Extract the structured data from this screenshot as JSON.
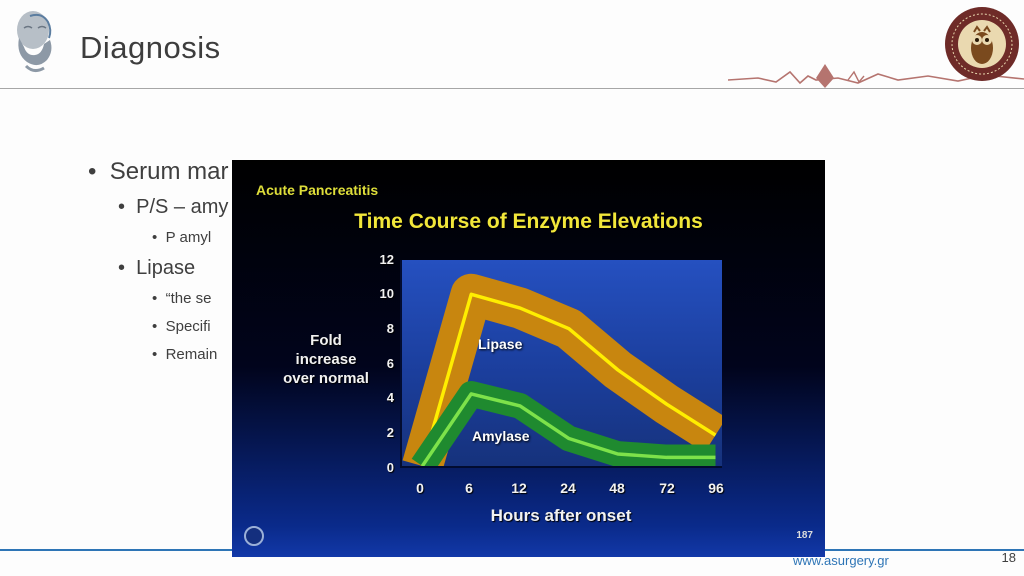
{
  "slide": {
    "title": "Diagnosis",
    "bullets": [
      {
        "level": 1,
        "text": "Serum mar"
      },
      {
        "level": 2,
        "text": "P/S – amy"
      },
      {
        "level": 3,
        "text": "P amyl"
      },
      {
        "level": 2,
        "text": "Lipase"
      },
      {
        "level": 3,
        "text": "“the se"
      },
      {
        "level": 3,
        "text": "Specifi"
      },
      {
        "level": 3,
        "text": "Remain"
      }
    ],
    "footer": {
      "link": "www.asurgery.gr",
      "page_number": "18"
    },
    "icons": {
      "header_left": "university-line-art-logo",
      "header_right": "university-owl-seal",
      "divider_decoration": "red-heartbeat-zigzag"
    },
    "accent_colors": {
      "footer_blue": "#2e75b6",
      "divider_gray": "#a6a6a6",
      "zigzag_red": "#b5746f",
      "title_gray": "#3d3d3d"
    }
  },
  "chart_data": {
    "type": "area",
    "subtitle": "Acute Pancreatitis",
    "title": "Time Course of Enzyme Elevations",
    "xlabel": "Hours after onset",
    "ylabel": "Fold increase over normal",
    "x_ticks": [
      0,
      6,
      12,
      24,
      48,
      72,
      96
    ],
    "y_ticks": [
      0,
      2,
      4,
      6,
      8,
      10,
      12
    ],
    "ylim": [
      0,
      12
    ],
    "x_spacing": "categorical",
    "legend_position": "inline-labels",
    "grid": false,
    "background_color": "#1b3e9c",
    "series": [
      {
        "name": "Lipase",
        "band_color": "#c8860f",
        "line_color": "#ffee00",
        "values": [
          0,
          10,
          9.2,
          8,
          5.6,
          3.6,
          1.8
        ],
        "band_thickness": 2.4
      },
      {
        "name": "Amylase",
        "band_color": "#1f8a2f",
        "line_color": "#7de24a",
        "values": [
          0,
          4.2,
          3.5,
          1.6,
          0.7,
          0.5,
          0.5
        ],
        "band_thickness": 1.5
      }
    ],
    "figure_number": "187"
  }
}
